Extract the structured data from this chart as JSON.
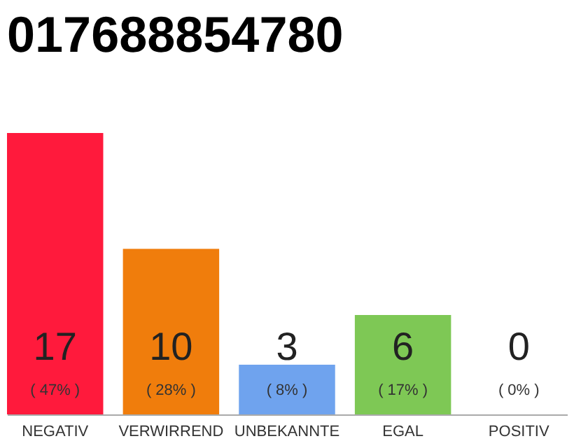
{
  "chart_data": {
    "type": "bar",
    "title": "017688854780",
    "categories": [
      "NEGATIV",
      "VERWIRREND",
      "UNBEKANNTE",
      "EGAL",
      "POSITIV"
    ],
    "values": [
      17,
      10,
      3,
      6,
      0
    ],
    "colors": [
      "#ff1a3c",
      "#f07d0c",
      "#6fa3ee",
      "#7ec855",
      "#d9d9d9"
    ],
    "data_labels": true,
    "annotations": [
      "( 47% )",
      "( 28% )",
      "( 8% )",
      "( 17% )",
      "( 0% )"
    ]
  }
}
